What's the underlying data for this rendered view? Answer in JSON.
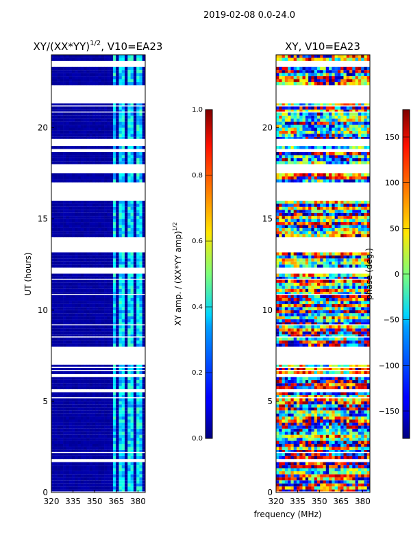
{
  "chart_data": {
    "type": "heatmap",
    "suptitle": "2019-02-08 0.0-24.0",
    "xlabel": "frequency (MHz)",
    "panels": [
      {
        "title_main": "XY/(XX*YY)",
        "title_sup": "1/2",
        "title_rest": ", V10=EA23",
        "ylabel": "UT (hours)",
        "xlim": [
          320,
          385
        ],
        "ylim": [
          0,
          24
        ],
        "xticks": [
          "320",
          "335",
          "350",
          "365",
          "380"
        ],
        "yticks": [
          "0",
          "5",
          "10",
          "15",
          "20"
        ],
        "colorbar": {
          "label_main": "XY amp. / (XX*YY amp)",
          "label_sup": "1/2",
          "range": [
            0,
            1
          ],
          "ticks": [
            "0.0",
            "0.2",
            "0.4",
            "0.6",
            "0.8",
            "1.0"
          ]
        },
        "typical_value": 0.02,
        "high_band_mhz": [
          362,
          382
        ],
        "high_band_value": 0.35
      },
      {
        "title_main": "XY, V10=EA23",
        "ylabel": "",
        "xlim": [
          320,
          385
        ],
        "ylim": [
          0,
          24
        ],
        "xticks": [
          "320",
          "335",
          "350",
          "365",
          "380"
        ],
        "yticks": [
          "0",
          "5",
          "10",
          "15",
          "20"
        ],
        "colorbar": {
          "label_main": "phase (deg.)",
          "range": [
            -180,
            180
          ],
          "ticks": [
            "−150",
            "−100",
            "−50",
            "0",
            "50",
            "100",
            "150"
          ]
        }
      }
    ],
    "data_gaps_hours": [
      [
        23.3,
        23.6
      ],
      [
        21.2,
        22.2
      ],
      [
        19.0,
        19.3
      ],
      [
        18.6,
        18.8
      ],
      [
        17.4,
        18.0
      ],
      [
        16.0,
        16.9
      ],
      [
        13.1,
        13.9
      ],
      [
        11.9,
        12.3
      ],
      [
        7.0,
        8.0
      ],
      [
        6.2,
        6.4
      ],
      [
        5.5,
        5.6
      ],
      [
        2.4,
        2.5
      ],
      [
        1.6,
        1.7
      ]
    ]
  }
}
